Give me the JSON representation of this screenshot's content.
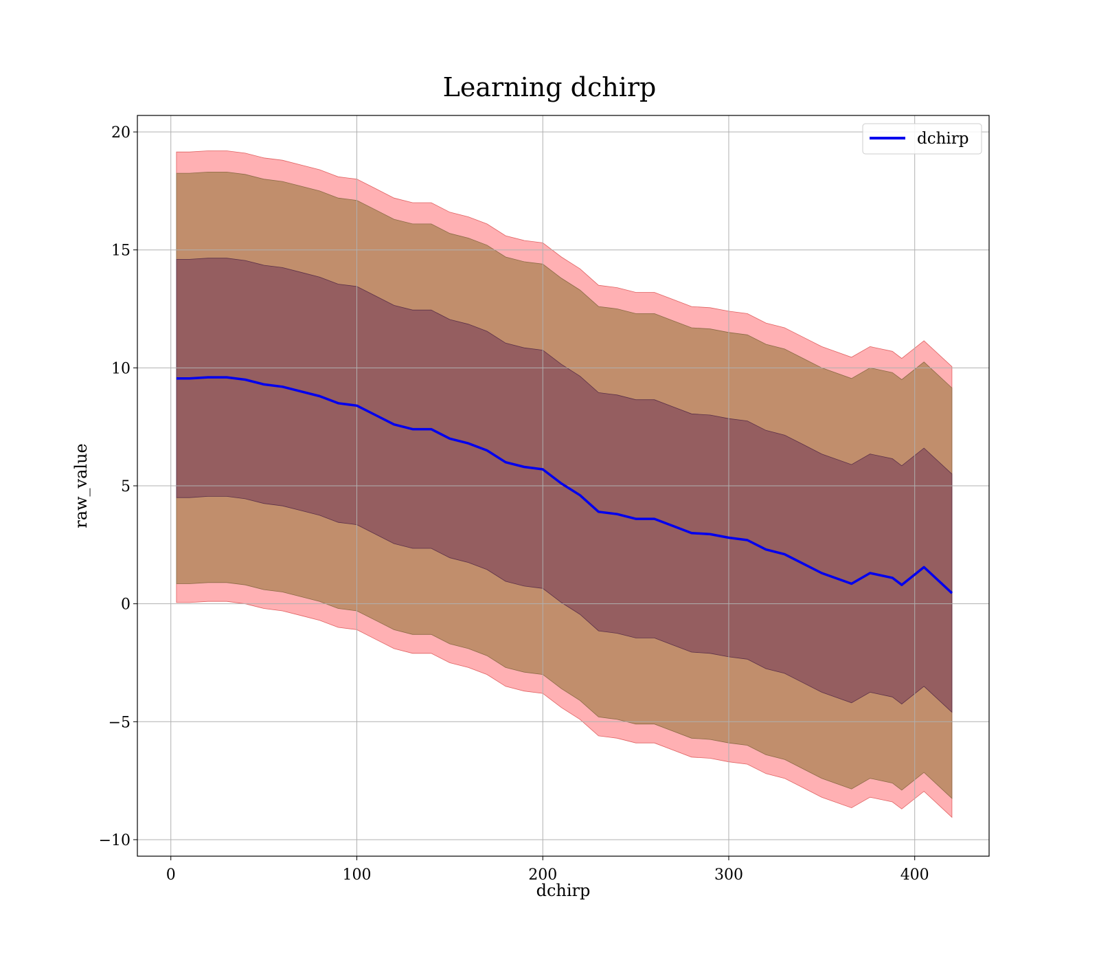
{
  "chart_data": {
    "type": "area",
    "title": "Learning dchirp",
    "xlabel": "dchirp",
    "ylabel": "raw_value",
    "xlim": [
      -18,
      440
    ],
    "ylim": [
      -10.7,
      20.7
    ],
    "xticks": [
      0,
      100,
      200,
      300,
      400
    ],
    "yticks": [
      -10,
      -5,
      0,
      5,
      10,
      15,
      20
    ],
    "xtick_labels": [
      "0",
      "100",
      "200",
      "300",
      "400"
    ],
    "ytick_labels": [
      "−10",
      "−5",
      "0",
      "5",
      "10",
      "15",
      "20"
    ],
    "grid": true,
    "legend": {
      "position": "top-right",
      "entries": [
        "dchirp"
      ]
    },
    "colors": {
      "line": "#0000ee",
      "outer_band": "#ff8a8f",
      "middle_band": "#b6885f",
      "inner_band": "#7b4058",
      "grid": "#b0b0b0"
    },
    "x": [
      3,
      10,
      20,
      30,
      40,
      50,
      60,
      70,
      80,
      90,
      100,
      110,
      120,
      130,
      140,
      150,
      160,
      170,
      180,
      190,
      200,
      210,
      220,
      230,
      240,
      250,
      260,
      270,
      280,
      290,
      300,
      310,
      320,
      330,
      340,
      350,
      366,
      376,
      388,
      393,
      405,
      420
    ],
    "series": [
      {
        "name": "dchirp",
        "values": [
          9.55,
          9.55,
          9.6,
          9.6,
          9.5,
          9.3,
          9.2,
          9.0,
          8.8,
          8.5,
          8.4,
          8.0,
          7.6,
          7.4,
          7.4,
          7.0,
          6.8,
          6.5,
          6.0,
          5.8,
          5.7,
          5.1,
          4.6,
          3.9,
          3.8,
          3.6,
          3.6,
          3.3,
          3.0,
          2.95,
          2.8,
          2.7,
          2.3,
          2.1,
          1.7,
          1.3,
          0.85,
          1.3,
          1.1,
          0.8,
          1.55,
          0.45
        ]
      }
    ],
    "bands": {
      "outer_upper_offset": 9.6,
      "middle_upper_offset": 8.7,
      "inner_upper_offset": 5.05,
      "inner_lower_offset": -5.05,
      "middle_lower_offset": -8.7,
      "outer_lower_offset": -9.5
    }
  }
}
